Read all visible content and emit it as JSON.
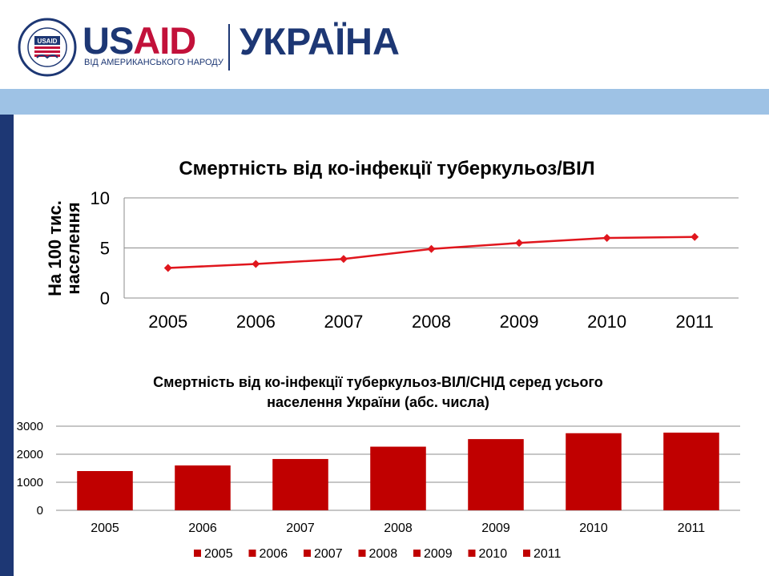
{
  "header": {
    "brand_part1": "US",
    "brand_part2": "AID",
    "tagline": "ВІД АМЕРИКАНСЬКОГО НАРОДУ",
    "country": "УКРАЇНА",
    "seal_text_top": "UNITED STATES AGENCY",
    "seal_text_bottom": "INTERNATIONAL DEVELOPMENT",
    "seal_badge": "USAID"
  },
  "colors": {
    "navy": "#1d3774",
    "red": "#c2113a",
    "band": "#9ec2e5",
    "series_line": "#e0161d",
    "series_bar": "#c00000"
  },
  "chart_data": [
    {
      "type": "line",
      "title": "Смертність  від ко-інфекції туберкульоз/ВІЛ",
      "ylabel_line1": "На 100 тис.",
      "ylabel_line2": "населення",
      "x": [
        "2005",
        "2006",
        "2007",
        "2008",
        "2009",
        "2010",
        "2011"
      ],
      "y": [
        3.0,
        3.4,
        3.9,
        4.9,
        5.5,
        6.0,
        6.1
      ],
      "ylim": [
        0,
        10
      ],
      "yticks": [
        "0",
        "5",
        "10"
      ],
      "grid": true,
      "legend": "none"
    },
    {
      "type": "bar",
      "title_line1": "Смертність від ко-інфекції туберкульоз-ВІЛ/СНІД серед усього",
      "title_line2": "населення України (абс. числа)",
      "categories": [
        "2005",
        "2006",
        "2007",
        "2008",
        "2009",
        "2010",
        "2011"
      ],
      "values": [
        1400,
        1600,
        1830,
        2270,
        2540,
        2750,
        2770
      ],
      "ylim": [
        0,
        3000
      ],
      "yticks": [
        "0",
        "1000",
        "2000",
        "3000"
      ],
      "grid": true,
      "legend": "bottom"
    }
  ]
}
